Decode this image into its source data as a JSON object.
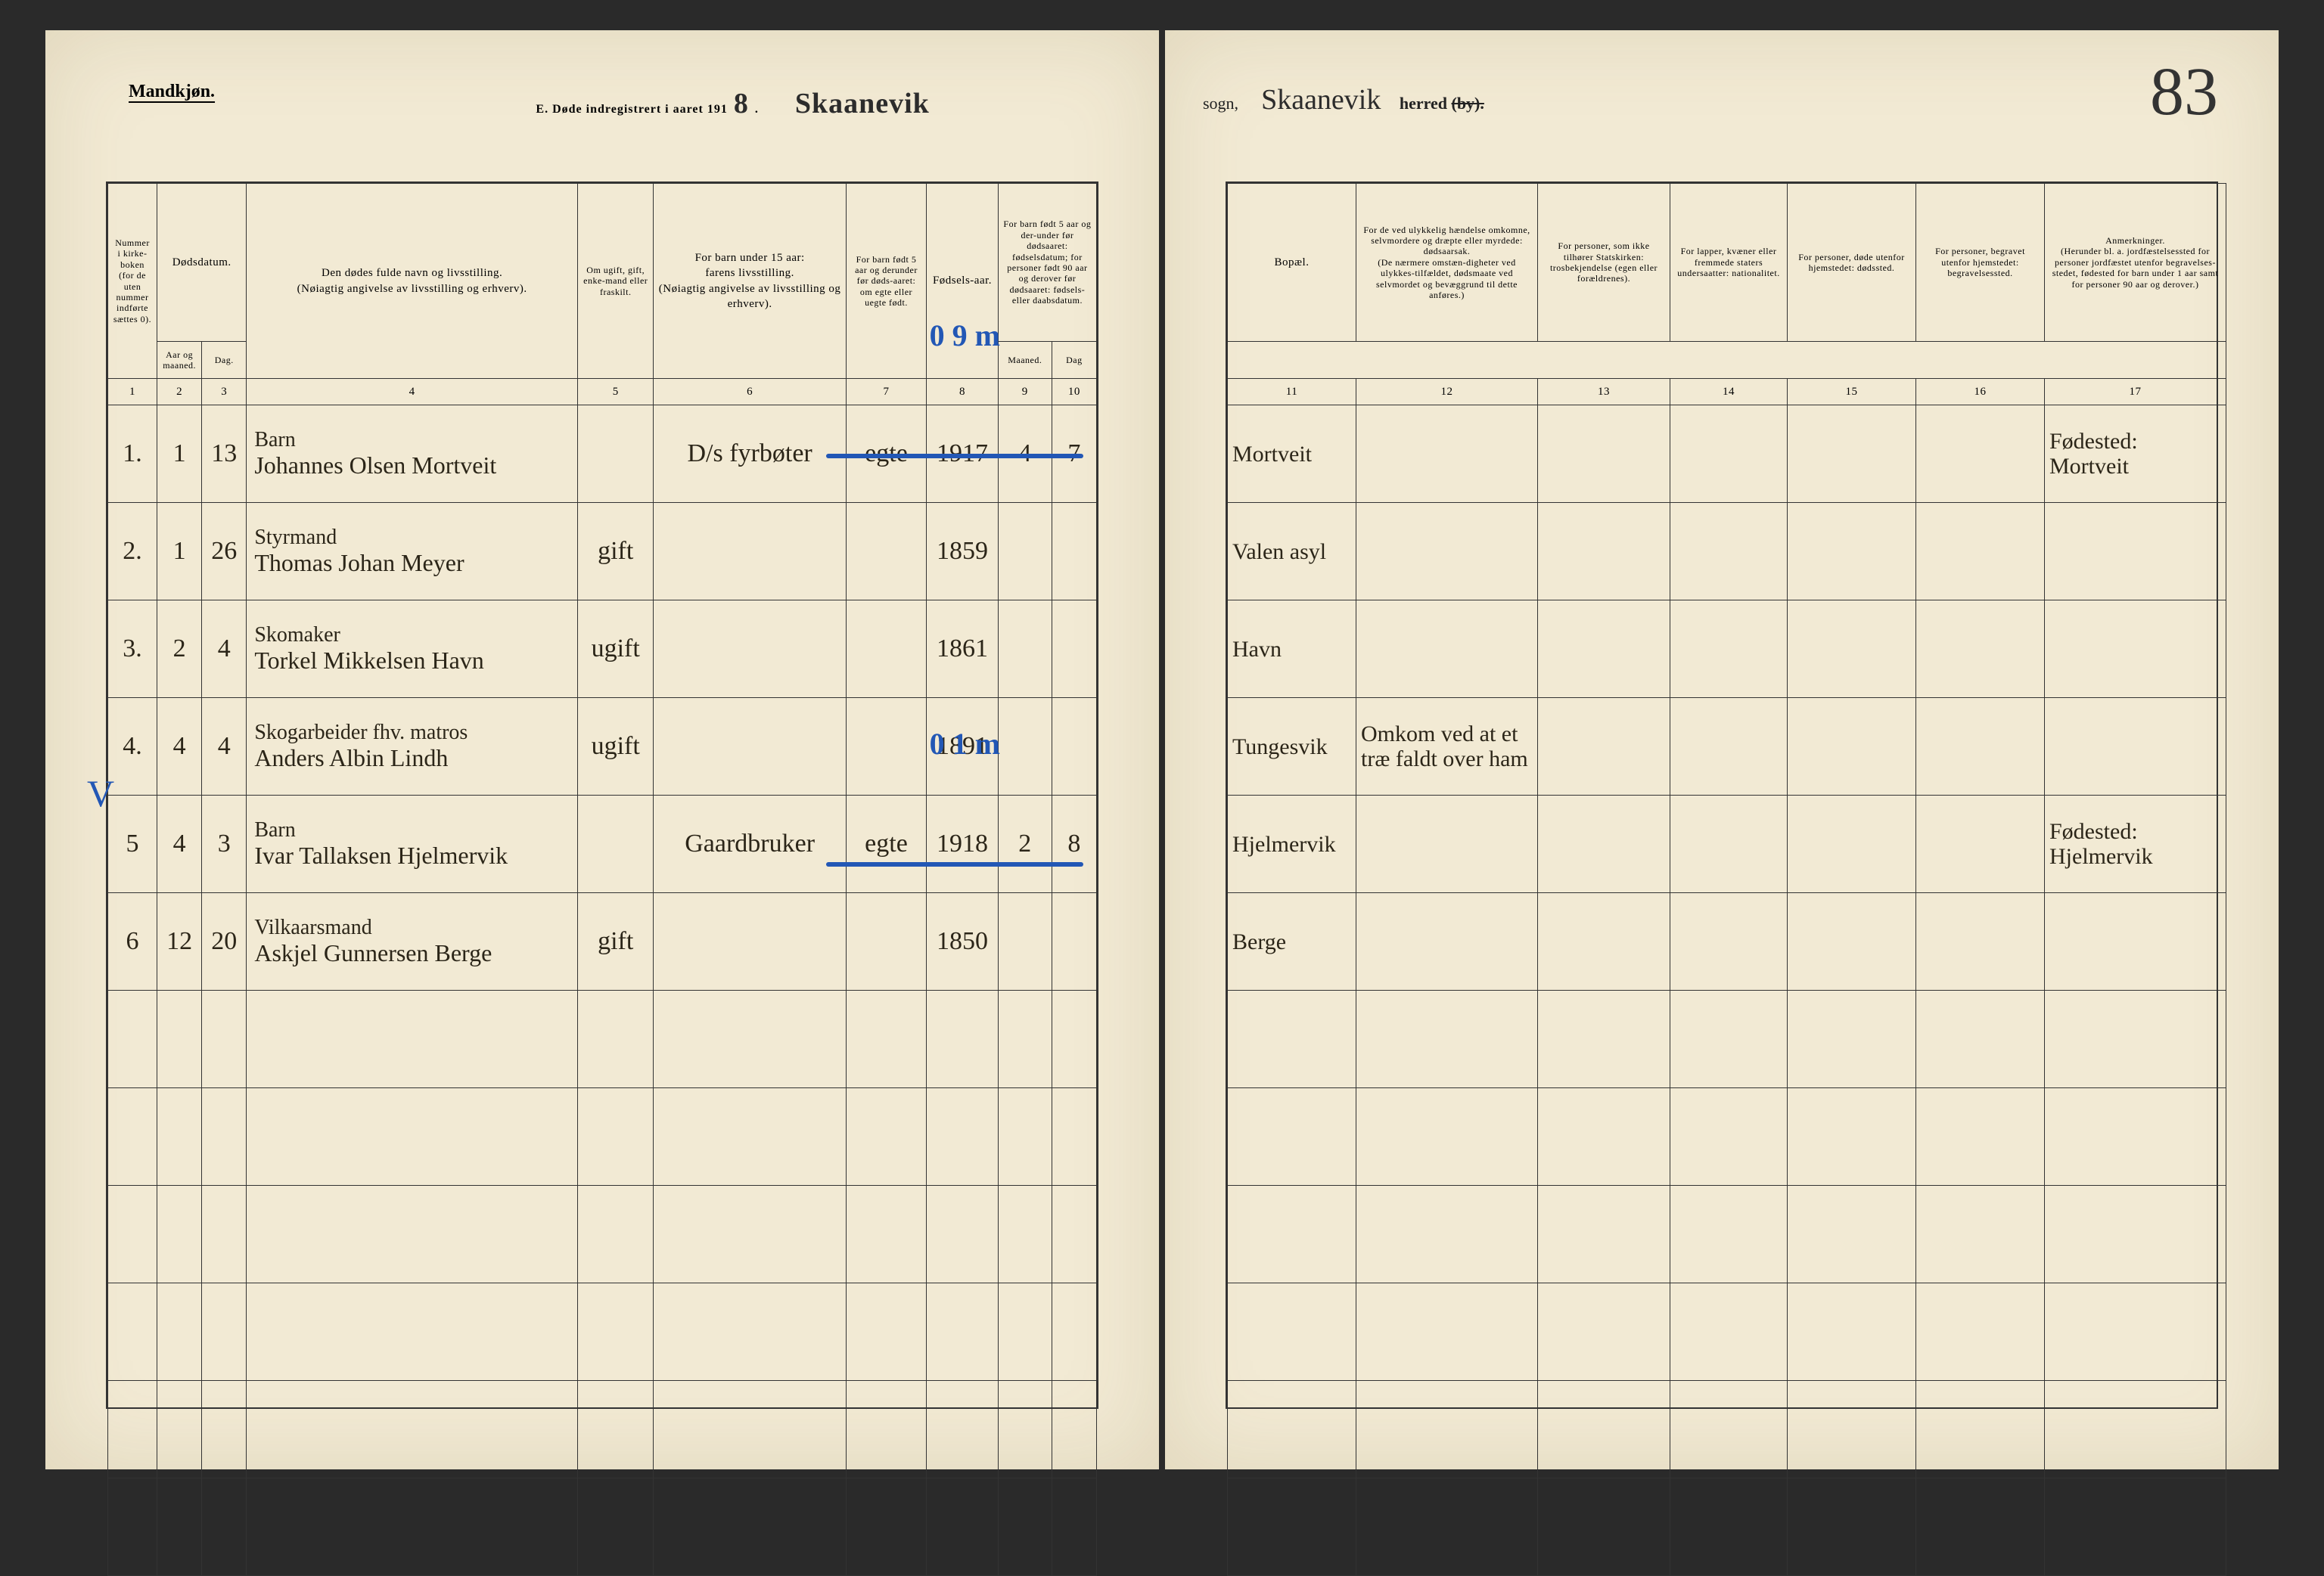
{
  "header": {
    "mandkjon": "Mandkjøn.",
    "title_prefix": "E.  Døde indregistrert i aaret 191",
    "year_suffix": "8",
    "sogn_label": "sogn,",
    "sogn_value": "Skaanevik",
    "herred_label": "herred",
    "by_label": "(by).",
    "herred_value": "Skaanevik",
    "page_number": "83"
  },
  "columns": {
    "c1": "Nummer i kirke-boken (for de uten nummer indførte sættes 0).",
    "c2_3": "Dødsdatum.",
    "c2": "Aar og maaned.",
    "c3": "Dag.",
    "c4": "Den dødes fulde navn og livsstilling.\n(Nøiagtig angivelse av livsstilling og erhverv).",
    "c5": "Om ugift, gift, enke-mand eller fraskilt.",
    "c6": "For barn under 15 aar:\nfarens livsstilling.\n(Nøiagtig angivelse av livsstilling og erhverv).",
    "c7": "For barn født 5 aar og derunder før døds-aaret: om egte eller uegte født.",
    "c8": "Fødsels-aar.",
    "c9_10": "For barn født 5 aar og der-under før dødsaaret: fødselsdatum; for personer født 90 aar og derover før dødsaaret: fødsels- eller daabsdatum.",
    "c9": "Maaned.",
    "c10": "Dag",
    "c11": "Bopæl.",
    "c12": "For de ved ulykkelig hændelse omkomne, selvmordere og dræpte eller myrdede: dødsaarsak.\n(De nærmere omstæn-digheter ved ulykkes-tilfældet, dødsmaate ved selvmordet og bevæggrund til dette anføres.)",
    "c13": "For personer, som ikke tilhører Statskirken: trosbekjendelse (egen eller forældrenes).",
    "c14": "For lapper, kvæner eller fremmede staters undersaatter: nationalitet.",
    "c15": "For personer, døde utenfor hjemstedet: dødssted.",
    "c16": "For personer, begravet utenfor hjemstedet: begravelsessted.",
    "c17": "Anmerkninger.\n(Herunder bl. a. jordfæstelsessted for personer jordfæstet utenfor begravelses-stedet, fødested for barn under 1 aar samt for personer 90 aar og derover.)"
  },
  "colnums": [
    "1",
    "2",
    "3",
    "4",
    "5",
    "6",
    "7",
    "8",
    "9",
    "10",
    "11",
    "12",
    "13",
    "14",
    "15",
    "16",
    "17"
  ],
  "rows": [
    {
      "n": "1.",
      "mo": "1",
      "day": "13",
      "role": "Barn",
      "name": "Johannes Olsen Mortveit",
      "status": "",
      "father": "D/s fyrbøter",
      "egte": "egte",
      "yr": "1917",
      "bm": "4",
      "bd": "7",
      "place": "Mortveit",
      "cause": "",
      "note": "Fødested: Mortveit"
    },
    {
      "n": "2.",
      "mo": "1",
      "day": "26",
      "role": "Styrmand",
      "name": "Thomas Johan Meyer",
      "status": "gift",
      "father": "",
      "egte": "",
      "yr": "1859",
      "bm": "",
      "bd": "",
      "place": "Valen asyl",
      "cause": "",
      "note": ""
    },
    {
      "n": "3.",
      "mo": "2",
      "day": "4",
      "role": "Skomaker",
      "name": "Torkel Mikkelsen Havn",
      "status": "ugift",
      "father": "",
      "egte": "",
      "yr": "1861",
      "bm": "",
      "bd": "",
      "place": "Havn",
      "cause": "",
      "note": ""
    },
    {
      "n": "4.",
      "mo": "4",
      "day": "4",
      "role": "Skogarbeider fhv. matros",
      "name": "Anders Albin Lindh",
      "status": "ugift",
      "father": "",
      "egte": "",
      "yr": "1891",
      "bm": "",
      "bd": "",
      "place": "Tungesvik",
      "cause": "Omkom ved at et træ faldt over ham",
      "note": ""
    },
    {
      "n": "5",
      "mo": "4",
      "day": "3",
      "role": "Barn",
      "name": "Ivar Tallaksen Hjelmervik",
      "status": "",
      "father": "Gaardbruker",
      "egte": "egte",
      "yr": "1918",
      "bm": "2",
      "bd": "8",
      "place": "Hjelmervik",
      "cause": "",
      "note": "Fødested: Hjelmervik"
    },
    {
      "n": "6",
      "mo": "12",
      "day": "20",
      "role": "Vilkaarsmand",
      "name": "Askjel Gunnersen Berge",
      "status": "gift",
      "father": "",
      "egte": "",
      "yr": "1850",
      "bm": "",
      "bd": "",
      "place": "Berge",
      "cause": "",
      "note": ""
    }
  ],
  "colwidths_left": [
    55,
    50,
    50,
    370,
    85,
    215,
    90,
    80,
    60,
    50
  ],
  "colwidths_right": [
    170,
    240,
    175,
    155,
    170,
    170,
    240
  ],
  "annotations": {
    "a1": "0  9 m",
    "a2": "0  1 m",
    "tick": "V"
  }
}
